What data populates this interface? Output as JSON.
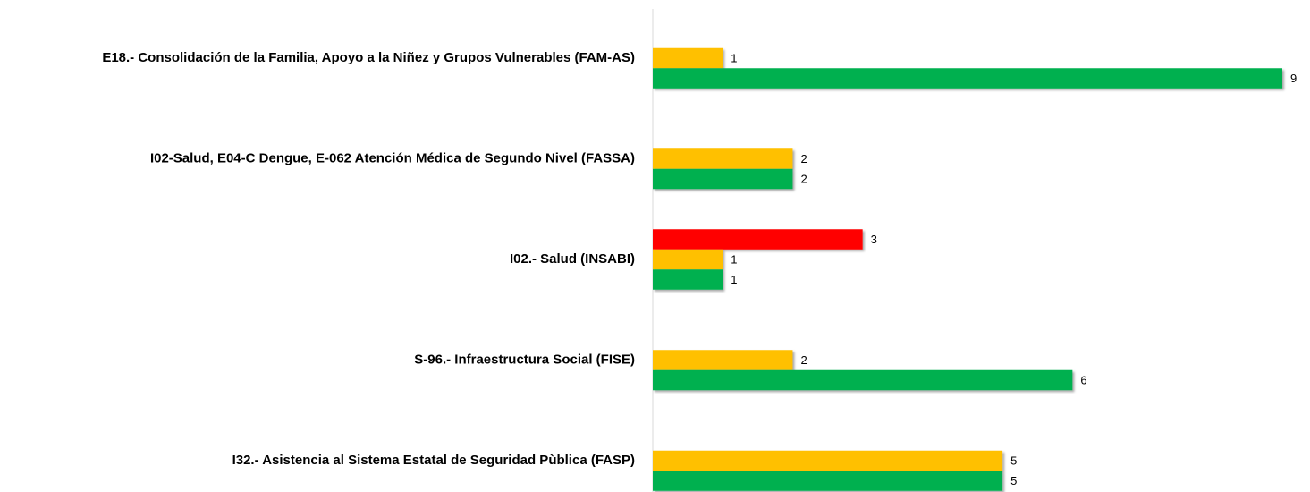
{
  "chart_data": {
    "type": "hbar",
    "categories": [
      "E18.- Consolidación de la Familia, Apoyo a la Niñez y Grupos Vulnerables (FAM-AS)",
      "I02-Salud, E04-C Dengue, E-062  Atención Médica de Segundo Nivel (FASSA)",
      "I02.- Salud (INSABI)",
      "S-96.- Infraestructura Social (FISE)",
      "I32.- Asistencia al Sistema Estatal de Seguridad Pùblica (FASP)"
    ],
    "series": [
      {
        "color": "#ff0000",
        "values": [
          null,
          null,
          3,
          null,
          null
        ]
      },
      {
        "color": "#ffc000",
        "values": [
          1,
          2,
          1,
          2,
          5
        ]
      },
      {
        "color": "#00b050",
        "values": [
          9,
          2,
          1,
          6,
          5
        ]
      }
    ],
    "xlim": [
      0,
      9
    ]
  }
}
